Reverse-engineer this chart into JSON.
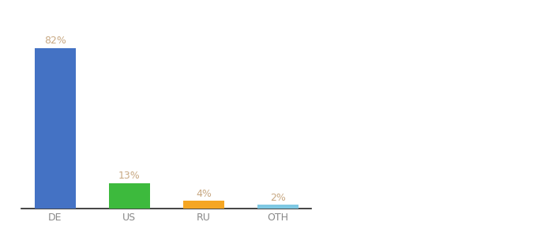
{
  "categories": [
    "DE",
    "US",
    "RU",
    "OTH"
  ],
  "values": [
    82,
    13,
    4,
    2
  ],
  "labels": [
    "82%",
    "13%",
    "4%",
    "2%"
  ],
  "bar_colors": [
    "#4472c4",
    "#3dba3d",
    "#f5a623",
    "#7ec8e3"
  ],
  "background_color": "#ffffff",
  "label_color": "#c8a882",
  "tick_color": "#888888",
  "ylim": [
    0,
    92
  ],
  "bar_width": 0.55,
  "label_fontsize": 9,
  "tick_fontsize": 9
}
